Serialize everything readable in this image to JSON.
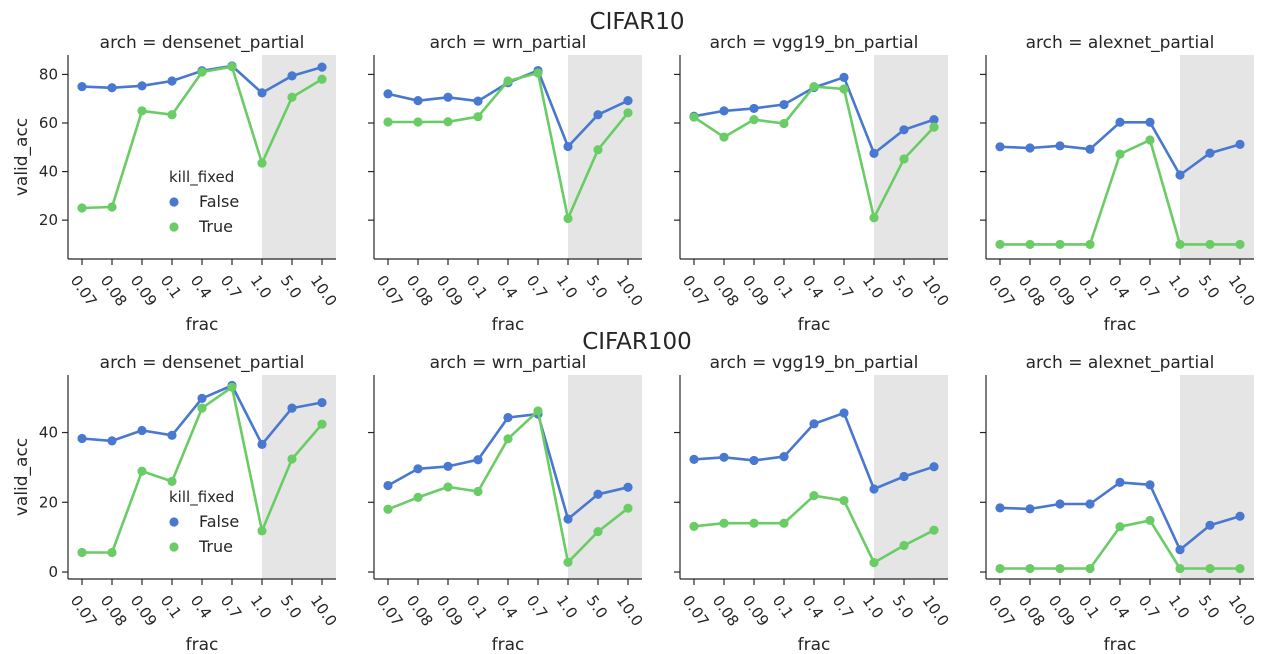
{
  "figure": {
    "row_titles": [
      "CIFAR10",
      "CIFAR100"
    ]
  },
  "colors": {
    "false": "#4878CF",
    "true": "#6ACC65",
    "shade": "#E5E5E5",
    "spine": "#262626"
  },
  "legend": {
    "title": "kill_fixed",
    "entries": [
      "False",
      "True"
    ],
    "placement": "lower-center of first panel in each row"
  },
  "chart_data": [
    {
      "type": "line",
      "row": 0,
      "col": 0,
      "title": "arch = densenet_partial",
      "xlabel": "frac",
      "ylabel": "valid_acc",
      "categories": [
        "0.07",
        "0.08",
        "0.09",
        "0.1",
        "0.4",
        "0.7",
        "1.0",
        "5.0",
        "10.0"
      ],
      "ylim": [
        4,
        88
      ],
      "yticks": [
        20,
        40,
        60,
        80
      ],
      "shaded_from": "1.0",
      "series": [
        {
          "name": "False",
          "values": [
            75.0,
            74.5,
            75.3,
            77.3,
            81.5,
            83.5,
            72.4,
            79.4,
            83.0
          ]
        },
        {
          "name": "True",
          "values": [
            25.0,
            25.4,
            65.0,
            63.4,
            81.0,
            83.2,
            43.5,
            70.6,
            78.0
          ]
        }
      ]
    },
    {
      "type": "line",
      "row": 0,
      "col": 1,
      "title": "arch = wrn_partial",
      "xlabel": "frac",
      "ylabel": "",
      "categories": [
        "0.07",
        "0.08",
        "0.09",
        "0.1",
        "0.4",
        "0.7",
        "1.0",
        "5.0",
        "10.0"
      ],
      "ylim": [
        4,
        88
      ],
      "yticks": [
        20,
        40,
        60,
        80
      ],
      "shaded_from": "1.0",
      "series": [
        {
          "name": "False",
          "values": [
            72.0,
            69.2,
            70.6,
            69.0,
            76.6,
            81.6,
            50.3,
            63.4,
            69.2
          ]
        },
        {
          "name": "True",
          "values": [
            60.4,
            60.4,
            60.5,
            62.6,
            77.3,
            80.6,
            20.7,
            49.0,
            64.2
          ]
        }
      ]
    },
    {
      "type": "line",
      "row": 0,
      "col": 2,
      "title": "arch = vgg19_bn_partial",
      "xlabel": "frac",
      "ylabel": "",
      "categories": [
        "0.07",
        "0.08",
        "0.09",
        "0.1",
        "0.4",
        "0.7",
        "1.0",
        "5.0",
        "10.0"
      ],
      "ylim": [
        4,
        88
      ],
      "yticks": [
        20,
        40,
        60,
        80
      ],
      "shaded_from": "1.0",
      "series": [
        {
          "name": "False",
          "values": [
            62.8,
            65.0,
            66.0,
            67.6,
            74.6,
            78.8,
            47.5,
            57.2,
            61.4
          ]
        },
        {
          "name": "True",
          "values": [
            62.4,
            54.2,
            61.4,
            59.8,
            75.0,
            74.0,
            21.0,
            45.2,
            58.3
          ]
        }
      ]
    },
    {
      "type": "line",
      "row": 0,
      "col": 3,
      "title": "arch = alexnet_partial",
      "xlabel": "frac",
      "ylabel": "",
      "categories": [
        "0.07",
        "0.08",
        "0.09",
        "0.1",
        "0.4",
        "0.7",
        "1.0",
        "5.0",
        "10.0"
      ],
      "ylim": [
        4,
        88
      ],
      "yticks": [
        20,
        40,
        60,
        80
      ],
      "shaded_from": "1.0",
      "series": [
        {
          "name": "False",
          "values": [
            50.2,
            49.7,
            50.6,
            49.2,
            60.3,
            60.3,
            38.6,
            47.6,
            51.2
          ]
        },
        {
          "name": "True",
          "values": [
            10.0,
            10.0,
            10.0,
            10.0,
            47.2,
            53.0,
            10.0,
            10.0,
            10.0
          ]
        }
      ]
    },
    {
      "type": "line",
      "row": 1,
      "col": 0,
      "title": "arch = densenet_partial",
      "xlabel": "frac",
      "ylabel": "valid_acc",
      "categories": [
        "0.07",
        "0.08",
        "0.09",
        "0.1",
        "0.4",
        "0.7",
        "1.0",
        "5.0",
        "10.0"
      ],
      "ylim": [
        -2,
        56.5
      ],
      "yticks": [
        0,
        20,
        40
      ],
      "shaded_from": "1.0",
      "series": [
        {
          "name": "False",
          "values": [
            38.3,
            37.6,
            40.6,
            39.2,
            49.8,
            53.5,
            36.6,
            47.0,
            48.6
          ]
        },
        {
          "name": "True",
          "values": [
            5.6,
            5.6,
            28.9,
            26.0,
            47.0,
            53.0,
            11.8,
            32.4,
            42.4
          ]
        }
      ]
    },
    {
      "type": "line",
      "row": 1,
      "col": 1,
      "title": "arch = wrn_partial",
      "xlabel": "frac",
      "ylabel": "",
      "categories": [
        "0.07",
        "0.08",
        "0.09",
        "0.1",
        "0.4",
        "0.7",
        "1.0",
        "5.0",
        "10.0"
      ],
      "ylim": [
        -2,
        56.5
      ],
      "yticks": [
        0,
        20,
        40
      ],
      "shaded_from": "1.0",
      "series": [
        {
          "name": "False",
          "values": [
            24.8,
            29.6,
            30.3,
            32.2,
            44.3,
            45.3,
            15.2,
            22.3,
            24.3
          ]
        },
        {
          "name": "True",
          "values": [
            18.0,
            21.4,
            24.4,
            23.1,
            38.2,
            46.2,
            2.8,
            11.6,
            18.3
          ]
        }
      ]
    },
    {
      "type": "line",
      "row": 1,
      "col": 2,
      "title": "arch = vgg19_bn_partial",
      "xlabel": "frac",
      "ylabel": "",
      "categories": [
        "0.07",
        "0.08",
        "0.09",
        "0.1",
        "0.4",
        "0.7",
        "1.0",
        "5.0",
        "10.0"
      ],
      "ylim": [
        -2,
        56.5
      ],
      "yticks": [
        0,
        20,
        40
      ],
      "shaded_from": "1.0",
      "series": [
        {
          "name": "False",
          "values": [
            32.3,
            32.9,
            32.0,
            33.1,
            42.5,
            45.6,
            23.8,
            27.4,
            30.2
          ]
        },
        {
          "name": "True",
          "values": [
            13.1,
            14.0,
            14.0,
            14.0,
            21.9,
            20.5,
            2.7,
            7.6,
            12.0
          ]
        }
      ]
    },
    {
      "type": "line",
      "row": 1,
      "col": 3,
      "title": "arch = alexnet_partial",
      "xlabel": "frac",
      "ylabel": "",
      "categories": [
        "0.07",
        "0.08",
        "0.09",
        "0.1",
        "0.4",
        "0.7",
        "1.0",
        "5.0",
        "10.0"
      ],
      "ylim": [
        -2,
        56.5
      ],
      "yticks": [
        0,
        20,
        40
      ],
      "shaded_from": "1.0",
      "series": [
        {
          "name": "False",
          "values": [
            18.4,
            18.1,
            19.5,
            19.5,
            25.7,
            25.0,
            6.4,
            13.4,
            16.0
          ]
        },
        {
          "name": "True",
          "values": [
            1.0,
            1.0,
            1.0,
            1.0,
            13.0,
            14.8,
            1.0,
            1.0,
            1.0
          ]
        }
      ]
    }
  ]
}
